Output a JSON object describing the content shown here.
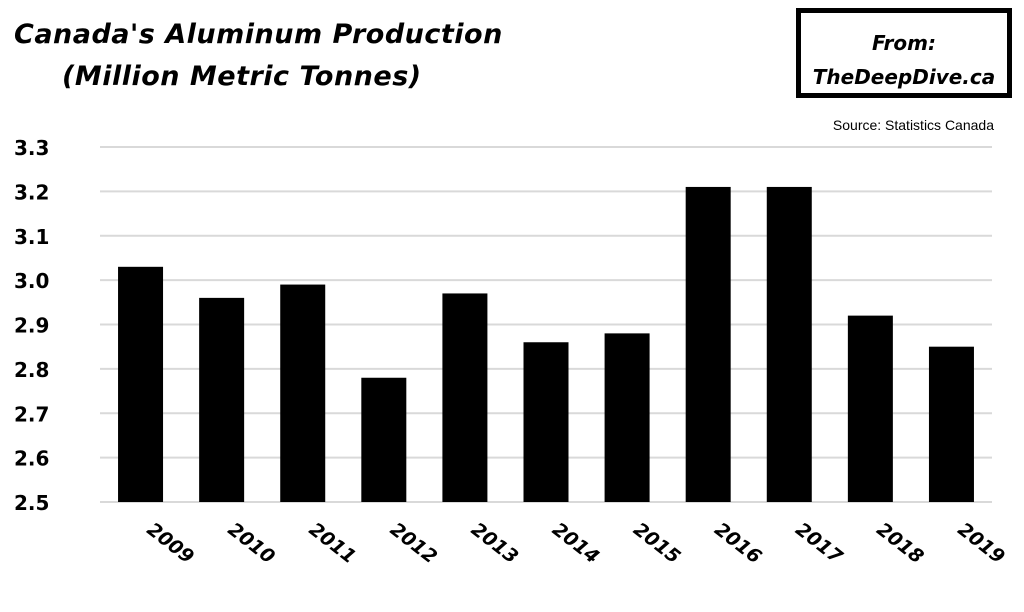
{
  "title": {
    "line1": "Canada's Aluminum Production",
    "line2": "(Million Metric Tonnes)"
  },
  "from_box": {
    "line1": "From:",
    "line2": "TheDeepDive.ca"
  },
  "source": "Source: Statistics Canada",
  "colors": {
    "bar": "#000000",
    "grid": "#d9d9d9",
    "background": "#ffffff"
  },
  "chart_data": {
    "type": "bar",
    "title": "Canada's Aluminum Production (Million Metric Tonnes)",
    "categories": [
      "2009",
      "2010",
      "2011",
      "2012",
      "2013",
      "2014",
      "2015",
      "2016",
      "2017",
      "2018",
      "2019"
    ],
    "values": [
      3.03,
      2.96,
      2.99,
      2.78,
      2.97,
      2.86,
      2.88,
      3.21,
      3.21,
      2.92,
      2.85
    ],
    "yticks": [
      "2.5",
      "2.6",
      "2.7",
      "2.8",
      "2.9",
      "3.0",
      "3.1",
      "3.2",
      "3.3"
    ],
    "ylim": [
      2.5,
      3.3
    ],
    "grid": true,
    "legend": "none"
  }
}
